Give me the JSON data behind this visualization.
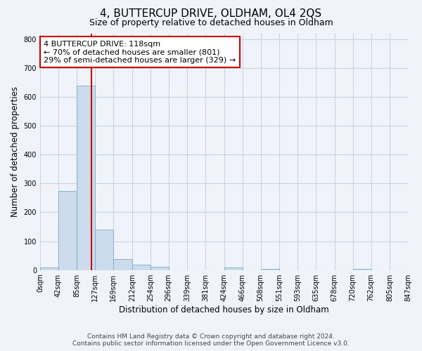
{
  "title": "4, BUTTERCUP DRIVE, OLDHAM, OL4 2QS",
  "subtitle": "Size of property relative to detached houses in Oldham",
  "xlabel": "Distribution of detached houses by size in Oldham",
  "ylabel": "Number of detached properties",
  "bin_edges": [
    0,
    42,
    85,
    127,
    169,
    212,
    254,
    296,
    339,
    381,
    424,
    466,
    508,
    551,
    593,
    635,
    678,
    720,
    762,
    805,
    847
  ],
  "bar_heights": [
    8,
    275,
    640,
    140,
    38,
    18,
    12,
    0,
    0,
    0,
    8,
    0,
    5,
    0,
    0,
    0,
    0,
    5,
    0,
    0
  ],
  "bar_color": "#ccdcec",
  "bar_edge_color": "#7aaac8",
  "property_size": 118,
  "vline_color": "#cc0000",
  "annotation_line1": "4 BUTTERCUP DRIVE: 118sqm",
  "annotation_line2": "← 70% of detached houses are smaller (801)",
  "annotation_line3": "29% of semi-detached houses are larger (329) →",
  "annotation_box_edge_color": "#cc0000",
  "annotation_box_face_color": "#ffffff",
  "ylim": [
    0,
    820
  ],
  "yticks": [
    0,
    100,
    200,
    300,
    400,
    500,
    600,
    700,
    800
  ],
  "footer_line1": "Contains HM Land Registry data © Crown copyright and database right 2024.",
  "footer_line2": "Contains public sector information licensed under the Open Government Licence v3.0.",
  "bg_color": "#f0f4fa",
  "grid_color": "#c8d4e4",
  "title_fontsize": 11,
  "subtitle_fontsize": 9,
  "axis_label_fontsize": 8.5,
  "tick_fontsize": 7,
  "annotation_fontsize": 8,
  "footer_fontsize": 6.5
}
